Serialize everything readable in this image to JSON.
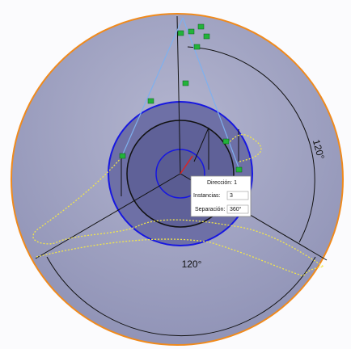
{
  "dimensions": [
    {
      "label": "120°"
    },
    {
      "label": "120°"
    }
  ],
  "pattern_dialog": {
    "direction": "Dirección: 1",
    "instances_label": "Instancias:",
    "instances_value": 3,
    "spacing_label": "Separación:",
    "spacing_value": "360°"
  }
}
